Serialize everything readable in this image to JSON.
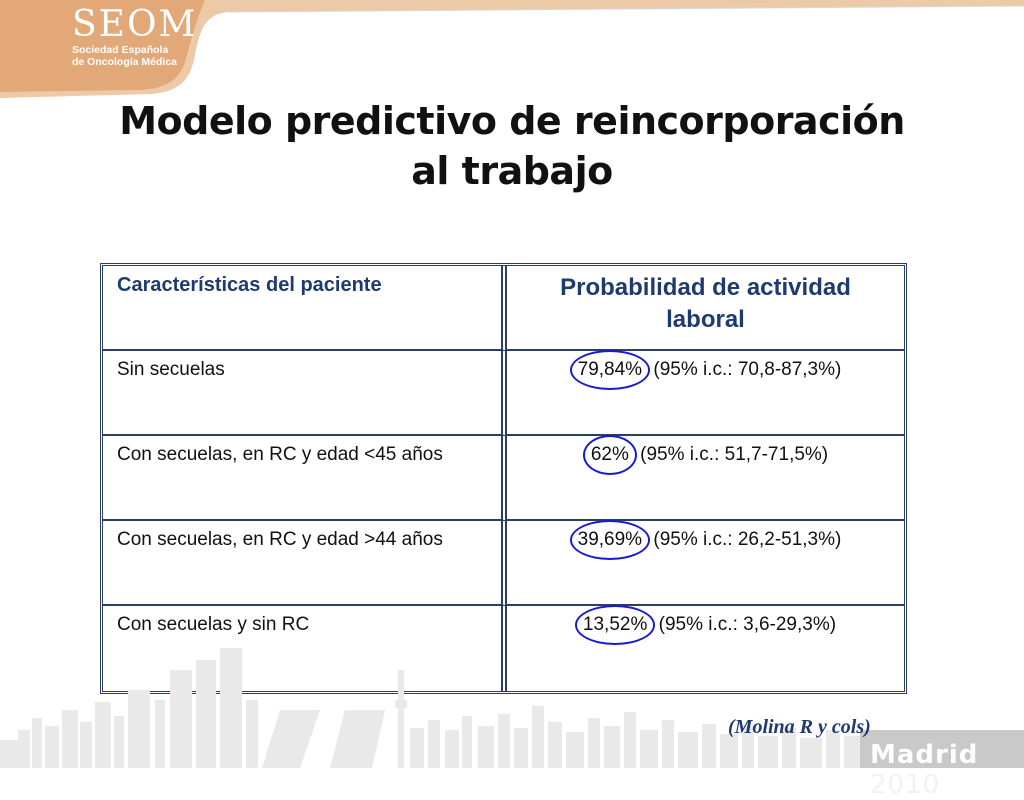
{
  "logo": {
    "main": "SEOM",
    "line1": "Sociedad Española",
    "line2": "de Oncología Médica"
  },
  "title": "Modelo predictivo de reincorporación al trabajo",
  "table": {
    "headers": [
      "Características del paciente",
      "Probabilidad de actividad laboral"
    ],
    "rows": [
      {
        "label": "Sin secuelas",
        "value": "79,84%",
        "ci": " (95% i.c.: 70,8-87,3%)"
      },
      {
        "label": "Con secuelas, en RC y edad <45 años",
        "value": "62%",
        "ci": " (95% i.c.: 51,7-71,5%)"
      },
      {
        "label": "Con secuelas, en RC y edad >44 años",
        "value": "39,69%",
        "ci": " (95% i.c.: 26,2-51,3%)"
      },
      {
        "label": "Con secuelas y sin RC",
        "value": "13,52%",
        "ci": " (95% i.c.: 3,6-29,3%)"
      }
    ]
  },
  "citation": "(Molina R y cols)",
  "footer": {
    "city": "Madrid",
    "year": "2010"
  },
  "colors": {
    "logo_orange": "#e8b588",
    "table_border": "#2a3f64",
    "header_text": "#1f3a6e",
    "highlight_circle": "#1a1acf"
  }
}
